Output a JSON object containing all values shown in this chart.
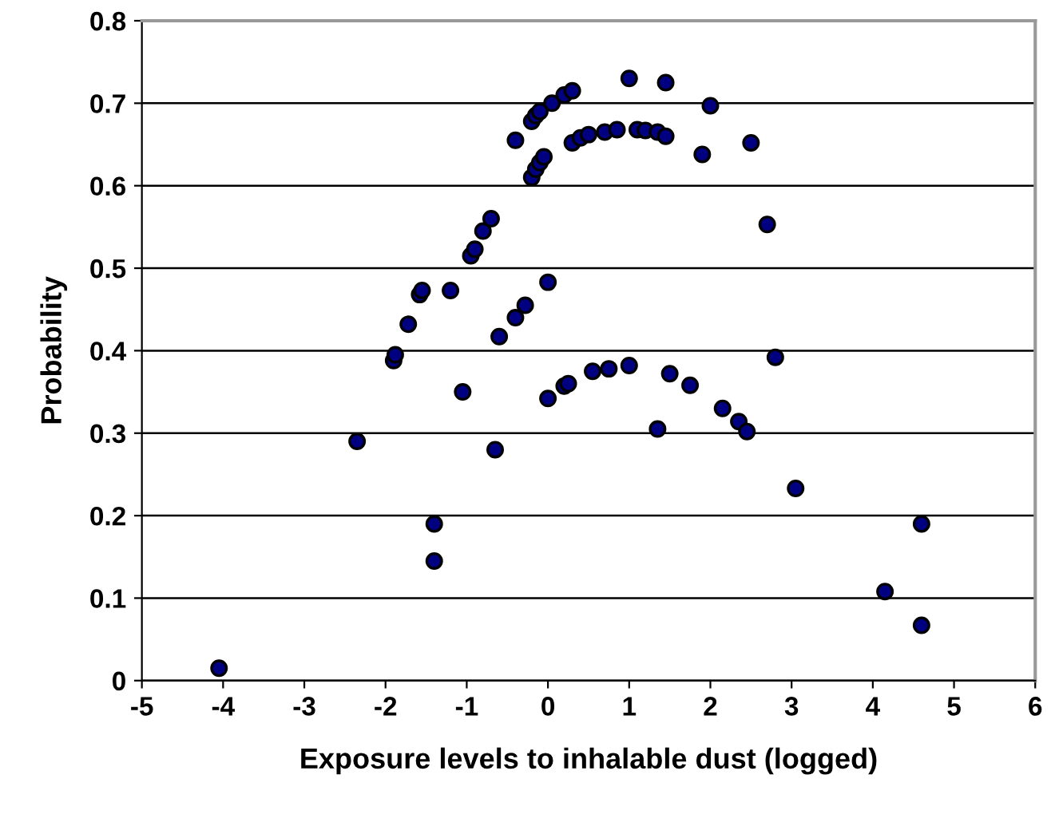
{
  "chart_data": {
    "type": "scatter",
    "xlabel": "Exposure levels to inhalable dust (logged)",
    "ylabel": "Probability",
    "x": [
      -4.05,
      -2.35,
      -1.9,
      -1.88,
      -1.72,
      -1.58,
      -1.55,
      -1.4,
      -1.4,
      -1.2,
      -1.05,
      -0.95,
      -0.9,
      -0.8,
      -0.7,
      -0.65,
      -0.6,
      -0.4,
      -0.4,
      -0.28,
      -0.2,
      -0.15,
      -0.1,
      -0.05,
      0,
      0,
      0.05,
      -0.2,
      -0.15,
      -0.1,
      0.2,
      0.3,
      0.2,
      0.25,
      0.3,
      0.4,
      0.5,
      0.55,
      0.7,
      0.75,
      0.85,
      1.0,
      1.0,
      1.1,
      1.2,
      1.35,
      1.45,
      1.35,
      1.45,
      1.5,
      1.75,
      1.9,
      2.0,
      2.15,
      2.35,
      2.45,
      2.5,
      2.7,
      2.8,
      3.05,
      4.15,
      4.6,
      4.6
    ],
    "values": [
      0.015,
      0.29,
      0.388,
      0.395,
      0.432,
      0.468,
      0.473,
      0.19,
      0.145,
      0.473,
      0.35,
      0.515,
      0.523,
      0.545,
      0.56,
      0.28,
      0.417,
      0.655,
      0.44,
      0.455,
      0.61,
      0.62,
      0.628,
      0.635,
      0.483,
      0.342,
      0.7,
      0.678,
      0.685,
      0.69,
      0.71,
      0.715,
      0.357,
      0.36,
      0.652,
      0.658,
      0.662,
      0.375,
      0.665,
      0.378,
      0.668,
      0.73,
      0.382,
      0.668,
      0.667,
      0.665,
      0.66,
      0.305,
      0.725,
      0.372,
      0.358,
      0.638,
      0.697,
      0.33,
      0.314,
      0.302,
      0.652,
      0.553,
      0.392,
      0.233,
      0.108,
      0.19,
      0.067
    ],
    "color": "#000080",
    "marker": "circle",
    "xlim": [
      -5,
      6
    ],
    "xticks": [
      -5,
      -4,
      -3,
      -2,
      -1,
      0,
      1,
      2,
      3,
      4,
      5,
      6
    ],
    "ylim": [
      0,
      0.8
    ],
    "yticks": [
      0,
      0.1,
      0.2,
      0.3,
      0.4,
      0.5,
      0.6,
      0.7,
      0.8
    ],
    "grid": "y"
  }
}
